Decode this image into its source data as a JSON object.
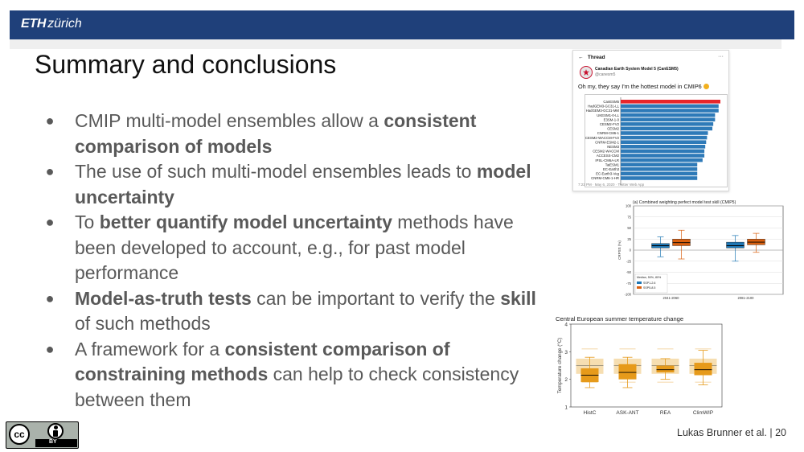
{
  "header": {
    "logo_eth": "ETH",
    "logo_zurich": "zürich",
    "brand_color": "#1f407a"
  },
  "title": "Summary and conclusions",
  "bullets": [
    {
      "parts": [
        {
          "t": "CMIP multi-model ensembles allow a ",
          "b": false
        },
        {
          "t": "consistent comparison of models",
          "b": true
        }
      ]
    },
    {
      "parts": [
        {
          "t": "The use of such multi-model ensembles leads to ",
          "b": false
        },
        {
          "t": "model uncertainty",
          "b": true
        }
      ]
    },
    {
      "parts": [
        {
          "t": "To ",
          "b": false
        },
        {
          "t": "better quantify model uncertainty",
          "b": true
        },
        {
          "t": " methods have been developed to account, e.g., for past model performance",
          "b": false
        }
      ]
    },
    {
      "parts": [
        {
          "t": "Model-as-truth tests",
          "b": true
        },
        {
          "t": " can be important to verify the ",
          "b": false
        },
        {
          "t": "skill",
          "b": true
        },
        {
          "t": " of such methods",
          "b": false
        }
      ]
    },
    {
      "parts": [
        {
          "t": "A framework for a ",
          "b": false
        },
        {
          "t": "consistent comparison of constraining methods",
          "b": true
        },
        {
          "t": " can help to check consistency between them",
          "b": false
        }
      ]
    }
  ],
  "tweet": {
    "header": "Thread",
    "name": "Canadian Earth System Model 5 (CanESM5)",
    "handle": "@canesm5",
    "text": "Oh my, they say I'm the hottest model in CMIP6",
    "time": "7:22 PM · May 6, 2020 · Twitter Web App",
    "highlight_color": "#e8262b",
    "bar_color": "#2e7ab8"
  },
  "chart_data": [
    {
      "type": "bar",
      "orientation": "horizontal",
      "categories": [
        "CanESM5",
        "HadGEM3-GC31-LL",
        "HadGEM3-GC31-MM",
        "UKESM1-0-LL",
        "E3SM-1-0",
        "CESM2-FV2",
        "CESM2",
        "CNRM-CM6-1",
        "CESM2-WACCM-FV2",
        "CNRM-ESM2-1",
        "NESM3",
        "CESM2-WACCM",
        "ACCESS-CM2",
        "IPSL-CM6A-LR",
        "TaiESM1",
        "EC-Earth3",
        "EC-Earth3-Veg",
        "CNRM-CM6-1-HR"
      ],
      "values": [
        5.6,
        5.5,
        5.5,
        5.3,
        5.3,
        5.2,
        5.15,
        4.9,
        4.85,
        4.8,
        4.75,
        4.7,
        4.7,
        4.6,
        4.3,
        4.3,
        4.3,
        4.3
      ]
    },
    {
      "type": "box",
      "title": "(a) Combined weighting perfect model test skill (CMIP5)",
      "ylabel": "CRPSS (%)",
      "ylim": [
        -100,
        100
      ],
      "yticks": [
        -100,
        -75,
        -50,
        -25,
        0,
        25,
        50,
        75,
        100
      ],
      "categories": [
        "2041-2060",
        "2081-2100"
      ],
      "legend_title": "Median, 50%, 80%",
      "series": [
        {
          "name": "SSP1-2.6",
          "color": "#1f77b4",
          "boxes": [
            {
              "p10": -15,
              "q1": 5,
              "median": 10,
              "q3": 15,
              "p90": 30
            },
            {
              "p10": -25,
              "q1": 5,
              "median": 10,
              "q3": 18,
              "p90": 33
            }
          ]
        },
        {
          "name": "SSP5-8.5",
          "color": "#d95f0e",
          "boxes": [
            {
              "p10": -20,
              "q1": 10,
              "median": 17,
              "q3": 25,
              "p90": 45
            },
            {
              "p10": -5,
              "q1": 12,
              "median": 18,
              "q3": 25,
              "p90": 38
            }
          ]
        }
      ]
    },
    {
      "type": "box",
      "title": "Central European summer temperature change",
      "ylabel": "Temperature change (°C)",
      "ylim": [
        1,
        4
      ],
      "yticks": [
        1,
        2,
        3,
        4
      ],
      "categories": [
        "HistC",
        "ASK-ANT",
        "REA",
        "ClimWIP"
      ],
      "color": "#e69a1a",
      "unconstrained": {
        "p10": 1.9,
        "q1": 2.2,
        "median": 2.5,
        "q3": 2.75,
        "p90": 3.1
      },
      "boxes": [
        {
          "p10": 1.7,
          "q1": 1.9,
          "median": 2.15,
          "q3": 2.4,
          "p90": 2.8
        },
        {
          "p10": 1.7,
          "q1": 2.0,
          "median": 2.25,
          "q3": 2.55,
          "p90": 2.8
        },
        {
          "p10": 2.0,
          "q1": 2.25,
          "median": 2.35,
          "q3": 2.5,
          "p90": 2.75
        },
        {
          "p10": 1.8,
          "q1": 2.15,
          "median": 2.35,
          "q3": 2.6,
          "p90": 3.05
        }
      ]
    }
  ],
  "license": {
    "by": "BY"
  },
  "footer": {
    "author": "Lukas Brunner et al.",
    "separator": "|",
    "page": "20"
  }
}
